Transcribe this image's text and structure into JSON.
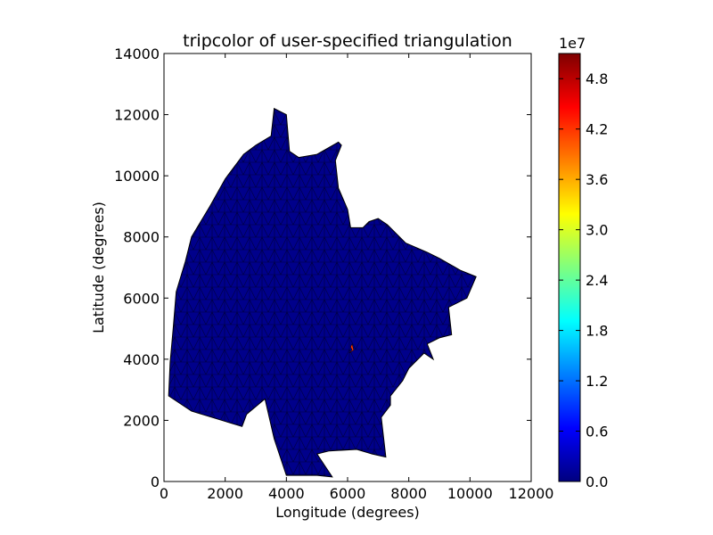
{
  "chart_data": {
    "type": "tripcolor",
    "title": "tripcolor of user-specified triangulation",
    "xlabel": "Longitude (degrees)",
    "ylabel": "Latitude (degrees)",
    "xlim": [
      0,
      12000
    ],
    "ylim": [
      0,
      14000
    ],
    "xticks": [
      0,
      2000,
      4000,
      6000,
      8000,
      10000,
      12000
    ],
    "xtick_labels": [
      "0",
      "2000",
      "4000",
      "6000",
      "8000",
      "10000",
      "12000"
    ],
    "yticks": [
      0,
      2000,
      4000,
      6000,
      8000,
      10000,
      12000,
      14000
    ],
    "ytick_labels": [
      "0",
      "2000",
      "4000",
      "6000",
      "8000",
      "10000",
      "12000",
      "14000"
    ],
    "grid": false,
    "region_boundary": [
      [
        150,
        2800
      ],
      [
        900,
        2300
      ],
      [
        2550,
        1800
      ],
      [
        2700,
        2200
      ],
      [
        3300,
        2700
      ],
      [
        3600,
        1400
      ],
      [
        4000,
        200
      ],
      [
        5000,
        200
      ],
      [
        5500,
        150
      ],
      [
        5000,
        900
      ],
      [
        5400,
        1000
      ],
      [
        6300,
        1050
      ],
      [
        6800,
        900
      ],
      [
        7250,
        800
      ],
      [
        7100,
        2100
      ],
      [
        7400,
        2500
      ],
      [
        7400,
        2800
      ],
      [
        7800,
        3300
      ],
      [
        8000,
        3700
      ],
      [
        8500,
        4200
      ],
      [
        8800,
        4000
      ],
      [
        8600,
        4500
      ],
      [
        9000,
        4700
      ],
      [
        9400,
        4800
      ],
      [
        9300,
        5700
      ],
      [
        9900,
        6000
      ],
      [
        10200,
        6700
      ],
      [
        9700,
        6900
      ],
      [
        9000,
        7300
      ],
      [
        8600,
        7500
      ],
      [
        7900,
        7800
      ],
      [
        7300,
        8400
      ],
      [
        7000,
        8600
      ],
      [
        6700,
        8500
      ],
      [
        6500,
        8300
      ],
      [
        6100,
        8300
      ],
      [
        6000,
        8900
      ],
      [
        5700,
        9600
      ],
      [
        5600,
        10500
      ],
      [
        5800,
        11000
      ],
      [
        5700,
        11100
      ],
      [
        5000,
        10700
      ],
      [
        4400,
        10600
      ],
      [
        4100,
        10800
      ],
      [
        4000,
        12000
      ],
      [
        3600,
        12200
      ],
      [
        3500,
        11300
      ],
      [
        3000,
        11000
      ],
      [
        2600,
        10700
      ],
      [
        2000,
        9900
      ],
      [
        1500,
        9000
      ],
      [
        900,
        8000
      ],
      [
        700,
        7200
      ],
      [
        400,
        6200
      ],
      [
        300,
        5000
      ],
      [
        200,
        3900
      ],
      [
        150,
        2800
      ]
    ],
    "hotspot": [
      [
        6050,
        4200
      ],
      [
        6150,
        4300
      ],
      [
        6100,
        4400
      ],
      [
        6150,
        4500
      ],
      [
        6200,
        4300
      ]
    ],
    "colorbar": {
      "offset_label": "1e7",
      "range": [
        0,
        5.1
      ],
      "ticks": [
        0.0,
        0.6,
        1.2,
        1.8,
        2.4,
        3.0,
        3.6,
        4.2,
        4.8
      ],
      "tick_labels": [
        "0.0",
        "0.6",
        "1.2",
        "1.8",
        "2.4",
        "3.0",
        "3.6",
        "4.2",
        "4.8"
      ],
      "colormap": [
        "#00007f",
        "#0000ff",
        "#007fff",
        "#00ffff",
        "#7fff7f",
        "#ffff00",
        "#ff7f00",
        "#ff0000",
        "#7f0000"
      ]
    },
    "colors": {
      "fill": "#00008b",
      "edges": "#000000",
      "hotspot": "#ff3300"
    }
  }
}
